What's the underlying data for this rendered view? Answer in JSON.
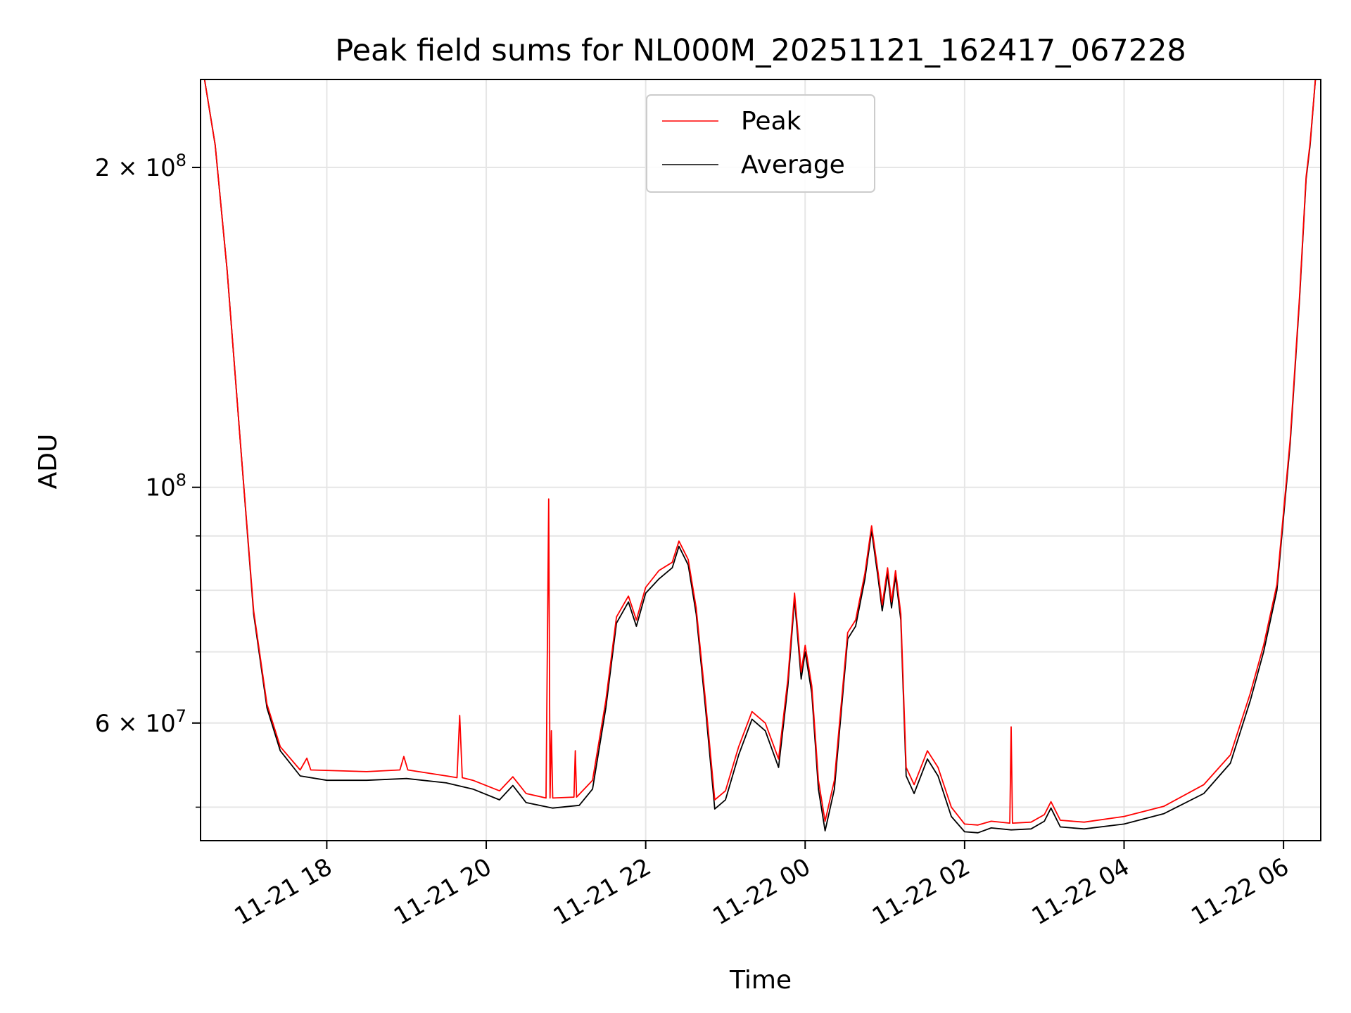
{
  "chart_data": {
    "type": "line",
    "title": "Peak field sums for NL000M_20251121_162417_067228",
    "xlabel": "Time",
    "ylabel": "ADU",
    "y_scale": "log",
    "ylim": [
      46500000,
      242000000
    ],
    "xlim": [
      "2025-11-21 16:25",
      "2025-11-22 06:28"
    ],
    "grid": true,
    "legend": {
      "placement": "upper-center",
      "entries": [
        "Peak",
        "Average"
      ]
    },
    "x_ticks": [
      "2025-11-21 18:00",
      "2025-11-21 20:00",
      "2025-11-21 22:00",
      "2025-11-22 00:00",
      "2025-11-22 02:00",
      "2025-11-22 04:00",
      "2025-11-22 06:00"
    ],
    "x_tick_labels": [
      "11-21 18",
      "11-21 20",
      "11-21 22",
      "11-22 00",
      "11-22 02",
      "11-22 04",
      "11-22 06"
    ],
    "y_major_ticks": [
      {
        "value": 200000000,
        "mantissa": "2",
        "exponent": "8"
      },
      {
        "value": 100000000,
        "mantissa": "",
        "exponent": "8"
      },
      {
        "value": 60000000,
        "mantissa": "6",
        "exponent": "7"
      }
    ],
    "y_minor_ticks": [
      50000000,
      70000000,
      80000000,
      90000000
    ],
    "series": [
      {
        "name": "Average",
        "color": "#000000",
        "points": [
          [
            "2025-11-21 16:28",
            242000000
          ],
          [
            "2025-11-21 16:36",
            210000000
          ],
          [
            "2025-11-21 16:45",
            160000000
          ],
          [
            "2025-11-21 16:55",
            110000000
          ],
          [
            "2025-11-21 17:05",
            76000000
          ],
          [
            "2025-11-21 17:15",
            62000000
          ],
          [
            "2025-11-21 17:25",
            56500000
          ],
          [
            "2025-11-21 17:40",
            53500000
          ],
          [
            "2025-11-21 18:00",
            53000000
          ],
          [
            "2025-11-21 18:30",
            53000000
          ],
          [
            "2025-11-21 19:00",
            53200000
          ],
          [
            "2025-11-21 19:30",
            52700000
          ],
          [
            "2025-11-21 19:50",
            52000000
          ],
          [
            "2025-11-21 20:10",
            50800000
          ],
          [
            "2025-11-21 20:20",
            52400000
          ],
          [
            "2025-11-21 20:30",
            50500000
          ],
          [
            "2025-11-21 20:50",
            49900000
          ],
          [
            "2025-11-21 21:10",
            50200000
          ],
          [
            "2025-11-21 21:20",
            52000000
          ],
          [
            "2025-11-21 21:30",
            62000000
          ],
          [
            "2025-11-21 21:38",
            74500000
          ],
          [
            "2025-11-21 21:47",
            78000000
          ],
          [
            "2025-11-21 21:53",
            74000000
          ],
          [
            "2025-11-21 22:00",
            79500000
          ],
          [
            "2025-11-21 22:10",
            82000000
          ],
          [
            "2025-11-21 22:20",
            84000000
          ],
          [
            "2025-11-21 22:25",
            88000000
          ],
          [
            "2025-11-21 22:32",
            84500000
          ],
          [
            "2025-11-21 22:38",
            76000000
          ],
          [
            "2025-11-21 22:45",
            62000000
          ],
          [
            "2025-11-21 22:52",
            49800000
          ],
          [
            "2025-11-21 23:00",
            50800000
          ],
          [
            "2025-11-21 23:10",
            56000000
          ],
          [
            "2025-11-21 23:20",
            60500000
          ],
          [
            "2025-11-21 23:30",
            59000000
          ],
          [
            "2025-11-21 23:40",
            54500000
          ],
          [
            "2025-11-21 23:47",
            65000000
          ],
          [
            "2025-11-21 23:52",
            78500000
          ],
          [
            "2025-11-21 23:57",
            66000000
          ],
          [
            "2025-11-22 00:00",
            70000000
          ],
          [
            "2025-11-22 00:05",
            64000000
          ],
          [
            "2025-11-22 00:10",
            52000000
          ],
          [
            "2025-11-22 00:15",
            47500000
          ],
          [
            "2025-11-22 00:22",
            52000000
          ],
          [
            "2025-11-22 00:32",
            72000000
          ],
          [
            "2025-11-22 00:38",
            74000000
          ],
          [
            "2025-11-22 00:45",
            82000000
          ],
          [
            "2025-11-22 00:50",
            91000000
          ],
          [
            "2025-11-22 00:55",
            82000000
          ],
          [
            "2025-11-22 00:58",
            76500000
          ],
          [
            "2025-11-22 01:02",
            83000000
          ],
          [
            "2025-11-22 01:05",
            77000000
          ],
          [
            "2025-11-22 01:08",
            82500000
          ],
          [
            "2025-11-22 01:12",
            75000000
          ],
          [
            "2025-11-22 01:16",
            53500000
          ],
          [
            "2025-11-22 01:22",
            51500000
          ],
          [
            "2025-11-22 01:32",
            55500000
          ],
          [
            "2025-11-22 01:40",
            53500000
          ],
          [
            "2025-11-22 01:50",
            49000000
          ],
          [
            "2025-11-22 02:00",
            47400000
          ],
          [
            "2025-11-22 02:10",
            47300000
          ],
          [
            "2025-11-22 02:20",
            47800000
          ],
          [
            "2025-11-22 02:35",
            47600000
          ],
          [
            "2025-11-22 02:50",
            47700000
          ],
          [
            "2025-11-22 03:00",
            48500000
          ],
          [
            "2025-11-22 03:05",
            49900000
          ],
          [
            "2025-11-22 03:12",
            47900000
          ],
          [
            "2025-11-22 03:30",
            47700000
          ],
          [
            "2025-11-22 04:00",
            48200000
          ],
          [
            "2025-11-22 04:30",
            49300000
          ],
          [
            "2025-11-22 05:00",
            51500000
          ],
          [
            "2025-11-22 05:20",
            55000000
          ],
          [
            "2025-11-22 05:35",
            63000000
          ],
          [
            "2025-11-22 05:45",
            70000000
          ],
          [
            "2025-11-22 05:55",
            80000000
          ],
          [
            "2025-11-22 06:05",
            110000000
          ],
          [
            "2025-11-22 06:12",
            150000000
          ],
          [
            "2025-11-22 06:17",
            195000000
          ],
          [
            "2025-11-22 06:20",
            210000000
          ],
          [
            "2025-11-22 06:24",
            242000000
          ]
        ]
      },
      {
        "name": "Peak",
        "color": "#ff0000",
        "points": [
          [
            "2025-11-21 16:28",
            242000000
          ],
          [
            "2025-11-21 16:36",
            210000000
          ],
          [
            "2025-11-21 16:45",
            160000000
          ],
          [
            "2025-11-21 16:55",
            110000000
          ],
          [
            "2025-11-21 17:05",
            76500000
          ],
          [
            "2025-11-21 17:15",
            62500000
          ],
          [
            "2025-11-21 17:25",
            57000000
          ],
          [
            "2025-11-21 17:40",
            54200000
          ],
          [
            "2025-11-21 17:45",
            55600000
          ],
          [
            "2025-11-21 17:48",
            54200000
          ],
          [
            "2025-11-21 18:30",
            54000000
          ],
          [
            "2025-11-21 18:55",
            54200000
          ],
          [
            "2025-11-21 18:58",
            55800000
          ],
          [
            "2025-11-21 19:01",
            54200000
          ],
          [
            "2025-11-21 19:30",
            53500000
          ],
          [
            "2025-11-21 19:38",
            53300000
          ],
          [
            "2025-11-21 19:40",
            61000000
          ],
          [
            "2025-11-21 19:42",
            53300000
          ],
          [
            "2025-11-21 19:50",
            53000000
          ],
          [
            "2025-11-21 20:10",
            51800000
          ],
          [
            "2025-11-21 20:20",
            53400000
          ],
          [
            "2025-11-21 20:30",
            51500000
          ],
          [
            "2025-11-21 20:45",
            51000000
          ],
          [
            "2025-11-21 20:47",
            97500000
          ],
          [
            "2025-11-21 20:48",
            51000000
          ],
          [
            "2025-11-21 20:49",
            59000000
          ],
          [
            "2025-11-21 20:50",
            51000000
          ],
          [
            "2025-11-21 21:06",
            51100000
          ],
          [
            "2025-11-21 21:07",
            56500000
          ],
          [
            "2025-11-21 21:08",
            51100000
          ],
          [
            "2025-11-21 21:20",
            53000000
          ],
          [
            "2025-11-21 21:30",
            63000000
          ],
          [
            "2025-11-21 21:38",
            75500000
          ],
          [
            "2025-11-21 21:47",
            79000000
          ],
          [
            "2025-11-21 21:53",
            75000000
          ],
          [
            "2025-11-21 22:00",
            80500000
          ],
          [
            "2025-11-21 22:10",
            83500000
          ],
          [
            "2025-11-21 22:20",
            85000000
          ],
          [
            "2025-11-21 22:25",
            89000000
          ],
          [
            "2025-11-21 22:32",
            85500000
          ],
          [
            "2025-11-21 22:38",
            77000000
          ],
          [
            "2025-11-21 22:45",
            63000000
          ],
          [
            "2025-11-21 22:52",
            50800000
          ],
          [
            "2025-11-21 23:00",
            51800000
          ],
          [
            "2025-11-21 23:10",
            57000000
          ],
          [
            "2025-11-21 23:20",
            61500000
          ],
          [
            "2025-11-21 23:30",
            60000000
          ],
          [
            "2025-11-21 23:40",
            55500000
          ],
          [
            "2025-11-21 23:47",
            66000000
          ],
          [
            "2025-11-21 23:52",
            79500000
          ],
          [
            "2025-11-21 23:57",
            67000000
          ],
          [
            "2025-11-22 00:00",
            71000000
          ],
          [
            "2025-11-22 00:05",
            65000000
          ],
          [
            "2025-11-22 00:10",
            53000000
          ],
          [
            "2025-11-22 00:15",
            48500000
          ],
          [
            "2025-11-22 00:22",
            53000000
          ],
          [
            "2025-11-22 00:32",
            73000000
          ],
          [
            "2025-11-22 00:38",
            75000000
          ],
          [
            "2025-11-22 00:45",
            83000000
          ],
          [
            "2025-11-22 00:50",
            92000000
          ],
          [
            "2025-11-22 00:55",
            83000000
          ],
          [
            "2025-11-22 00:58",
            77500000
          ],
          [
            "2025-11-22 01:02",
            84000000
          ],
          [
            "2025-11-22 01:05",
            78000000
          ],
          [
            "2025-11-22 01:08",
            83500000
          ],
          [
            "2025-11-22 01:12",
            76000000
          ],
          [
            "2025-11-22 01:16",
            54500000
          ],
          [
            "2025-11-22 01:22",
            52500000
          ],
          [
            "2025-11-22 01:32",
            56500000
          ],
          [
            "2025-11-22 01:40",
            54500000
          ],
          [
            "2025-11-22 01:50",
            50000000
          ],
          [
            "2025-11-22 02:00",
            48200000
          ],
          [
            "2025-11-22 02:10",
            48100000
          ],
          [
            "2025-11-22 02:20",
            48500000
          ],
          [
            "2025-11-22 02:34",
            48300000
          ],
          [
            "2025-11-22 02:35",
            59500000
          ],
          [
            "2025-11-22 02:36",
            48300000
          ],
          [
            "2025-11-22 02:50",
            48400000
          ],
          [
            "2025-11-22 03:00",
            49200000
          ],
          [
            "2025-11-22 03:05",
            50600000
          ],
          [
            "2025-11-22 03:12",
            48600000
          ],
          [
            "2025-11-22 03:30",
            48400000
          ],
          [
            "2025-11-22 04:00",
            49000000
          ],
          [
            "2025-11-22 04:30",
            50100000
          ],
          [
            "2025-11-22 05:00",
            52500000
          ],
          [
            "2025-11-22 05:20",
            56000000
          ],
          [
            "2025-11-22 05:35",
            64000000
          ],
          [
            "2025-11-22 05:45",
            71000000
          ],
          [
            "2025-11-22 05:55",
            81000000
          ],
          [
            "2025-11-22 06:05",
            111000000
          ],
          [
            "2025-11-22 06:12",
            151000000
          ],
          [
            "2025-11-22 06:17",
            196000000
          ],
          [
            "2025-11-22 06:20",
            211000000
          ],
          [
            "2025-11-22 06:24",
            242000000
          ]
        ]
      }
    ]
  }
}
